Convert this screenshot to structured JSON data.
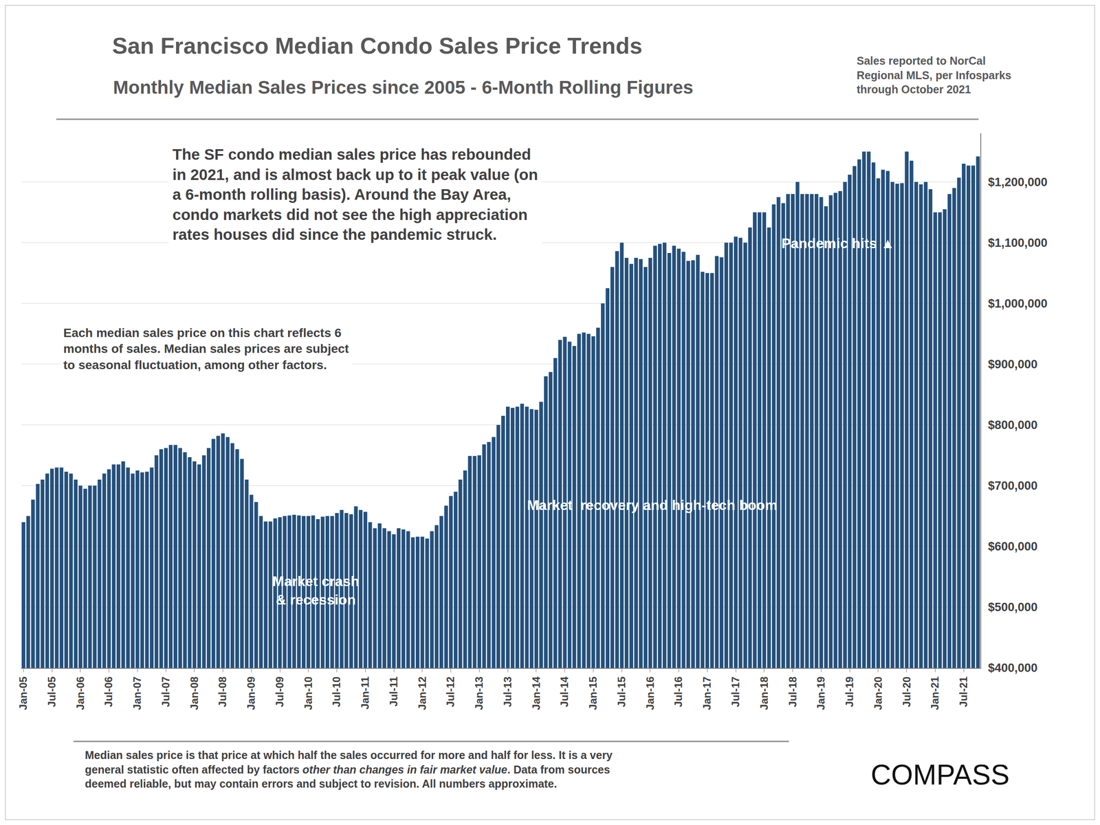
{
  "chart_data": {
    "type": "bar",
    "title": "San Francisco Median Condo Sales Price Trends",
    "subtitle": "Monthly Median Sales Prices since 2005 - 6-Month Rolling Figures",
    "source_note": [
      "Sales reported to NorCal",
      "Regional MLS, per Infosparks",
      "through October 2021"
    ],
    "annotations": [
      {
        "text": [
          "The SF condo median sales price has rebounded",
          "in 2021, and is almost back up to it peak value (on",
          "a 6-month rolling basis). Around the Bay Area,",
          "condo markets did not see the high appreciation",
          "rates houses did since the pandemic struck."
        ]
      },
      {
        "text": [
          "Each median sales price on this chart reflects 6",
          "months of sales. Median sales prices are subject",
          "to seasonal fluctuation, among other factors."
        ]
      },
      {
        "text": [
          "Market crash",
          "& recession"
        ]
      },
      {
        "text": [
          "Market  recovery and high-tech boom"
        ]
      },
      {
        "text": [
          "Pandemic hits ▲"
        ]
      }
    ],
    "footnote": {
      "lines": [
        "Median sales price is that price at which half the sales occurred for more and half for less. It is a very",
        "general statistic often affected by factors other than changes in fair market value. Data from sources",
        "deemed reliable, but may contain errors and subject to revision. All numbers approximate."
      ],
      "italic": "other than changes in fair market value"
    },
    "brand": "COMPASS",
    "categories": [
      "Jan-05",
      null,
      null,
      null,
      null,
      null,
      "Jul-05",
      null,
      null,
      null,
      null,
      null,
      "Jan-06",
      null,
      null,
      null,
      null,
      null,
      "Jul-06",
      null,
      null,
      null,
      null,
      null,
      "Jan-07",
      null,
      null,
      null,
      null,
      null,
      "Jul-07",
      null,
      null,
      null,
      null,
      null,
      "Jan-08",
      null,
      null,
      null,
      null,
      null,
      "Jul-08",
      null,
      null,
      null,
      null,
      null,
      "Jan-09",
      null,
      null,
      null,
      null,
      null,
      "Jul-09",
      null,
      null,
      null,
      null,
      null,
      "Jan-10",
      null,
      null,
      null,
      null,
      null,
      "Jul-10",
      null,
      null,
      null,
      null,
      null,
      "Jan-11",
      null,
      null,
      null,
      null,
      null,
      "Jul-11",
      null,
      null,
      null,
      null,
      null,
      "Jan-12",
      null,
      null,
      null,
      null,
      null,
      "Jul-12",
      null,
      null,
      null,
      null,
      null,
      "Jan-13",
      null,
      null,
      null,
      null,
      null,
      "Jul-13",
      null,
      null,
      null,
      null,
      null,
      "Jan-14",
      null,
      null,
      null,
      null,
      null,
      "Jul-14",
      null,
      null,
      null,
      null,
      null,
      "Jan-15",
      null,
      null,
      null,
      null,
      null,
      "Jul-15",
      null,
      null,
      null,
      null,
      null,
      "Jan-16",
      null,
      null,
      null,
      null,
      null,
      "Jul-16",
      null,
      null,
      null,
      null,
      null,
      "Jan-17",
      null,
      null,
      null,
      null,
      null,
      "Jul-17",
      null,
      null,
      null,
      null,
      null,
      "Jan-18",
      null,
      null,
      null,
      null,
      null,
      "Jul-18",
      null,
      null,
      null,
      null,
      null,
      "Jan-19",
      null,
      null,
      null,
      null,
      null,
      "Jul-19",
      null,
      null,
      null,
      null,
      null,
      "Jan-20",
      null,
      null,
      null,
      null,
      null,
      "Jul-20",
      null,
      null,
      null,
      null,
      null,
      "Jan-21",
      null,
      null,
      null,
      null,
      null,
      "Jul-21",
      null,
      null,
      null
    ],
    "values": [
      640000,
      650000,
      677000,
      703000,
      710000,
      720000,
      728000,
      730000,
      730000,
      723000,
      720000,
      710000,
      700000,
      695000,
      700000,
      700000,
      710000,
      720000,
      727000,
      735000,
      735000,
      740000,
      730000,
      720000,
      725000,
      722000,
      723000,
      730000,
      750000,
      760000,
      762000,
      767000,
      767000,
      762000,
      755000,
      747000,
      740000,
      735000,
      750000,
      762000,
      777000,
      782000,
      786000,
      780000,
      770000,
      760000,
      744000,
      710000,
      685000,
      673000,
      650000,
      641000,
      641000,
      646000,
      648000,
      650000,
      651000,
      652000,
      651000,
      650000,
      650000,
      651000,
      645000,
      649000,
      650000,
      650000,
      655000,
      660000,
      655000,
      653000,
      666000,
      660000,
      657000,
      640000,
      630000,
      638000,
      630000,
      625000,
      620000,
      630000,
      628000,
      625000,
      615000,
      616000,
      616000,
      613000,
      625000,
      635000,
      650000,
      667000,
      683000,
      690000,
      710000,
      725000,
      749000,
      749000,
      750000,
      768000,
      772000,
      780000,
      800000,
      815000,
      830000,
      828000,
      830000,
      835000,
      830000,
      826000,
      825000,
      838000,
      880000,
      887000,
      910000,
      940000,
      945000,
      937000,
      930000,
      950000,
      952000,
      950000,
      946000,
      960000,
      1000000,
      1025000,
      1060000,
      1086000,
      1100000,
      1075000,
      1065000,
      1075000,
      1073000,
      1060000,
      1075000,
      1095000,
      1098000,
      1100000,
      1083000,
      1095000,
      1090000,
      1085000,
      1070000,
      1071000,
      1080000,
      1052000,
      1050000,
      1050000,
      1078000,
      1076000,
      1100000,
      1100000,
      1110000,
      1108000,
      1100000,
      1125000,
      1150000,
      1150000,
      1150000,
      1125000,
      1163000,
      1175000,
      1165000,
      1180000,
      1180000,
      1200000,
      1180000,
      1180000,
      1180000,
      1180000,
      1175000,
      1160000,
      1178000,
      1182000,
      1185000,
      1200000,
      1212000,
      1226000,
      1237000,
      1250000,
      1250000,
      1232000,
      1206000,
      1220000,
      1218000,
      1200000,
      1197000,
      1198000,
      1250000,
      1235000,
      1200000,
      1196000,
      1200000,
      1188000,
      1150000,
      1150000,
      1155000,
      1180000,
      1190000,
      1207000,
      1230000,
      1227000,
      1227000,
      1242000
    ],
    "color": "#24507c",
    "ylim": [
      400000,
      1280000
    ],
    "yticks": [
      {
        "value": 400000,
        "label": "$400,000"
      },
      {
        "value": 500000,
        "label": "$500,000"
      },
      {
        "value": 600000,
        "label": "$600,000"
      },
      {
        "value": 700000,
        "label": "$700,000"
      },
      {
        "value": 800000,
        "label": "$800,000"
      },
      {
        "value": 900000,
        "label": "$900,000"
      },
      {
        "value": 1000000,
        "label": "$1,000,000"
      },
      {
        "value": 1100000,
        "label": "$1,100,000"
      },
      {
        "value": 1200000,
        "label": "$1,200,000"
      }
    ],
    "grid": true
  }
}
